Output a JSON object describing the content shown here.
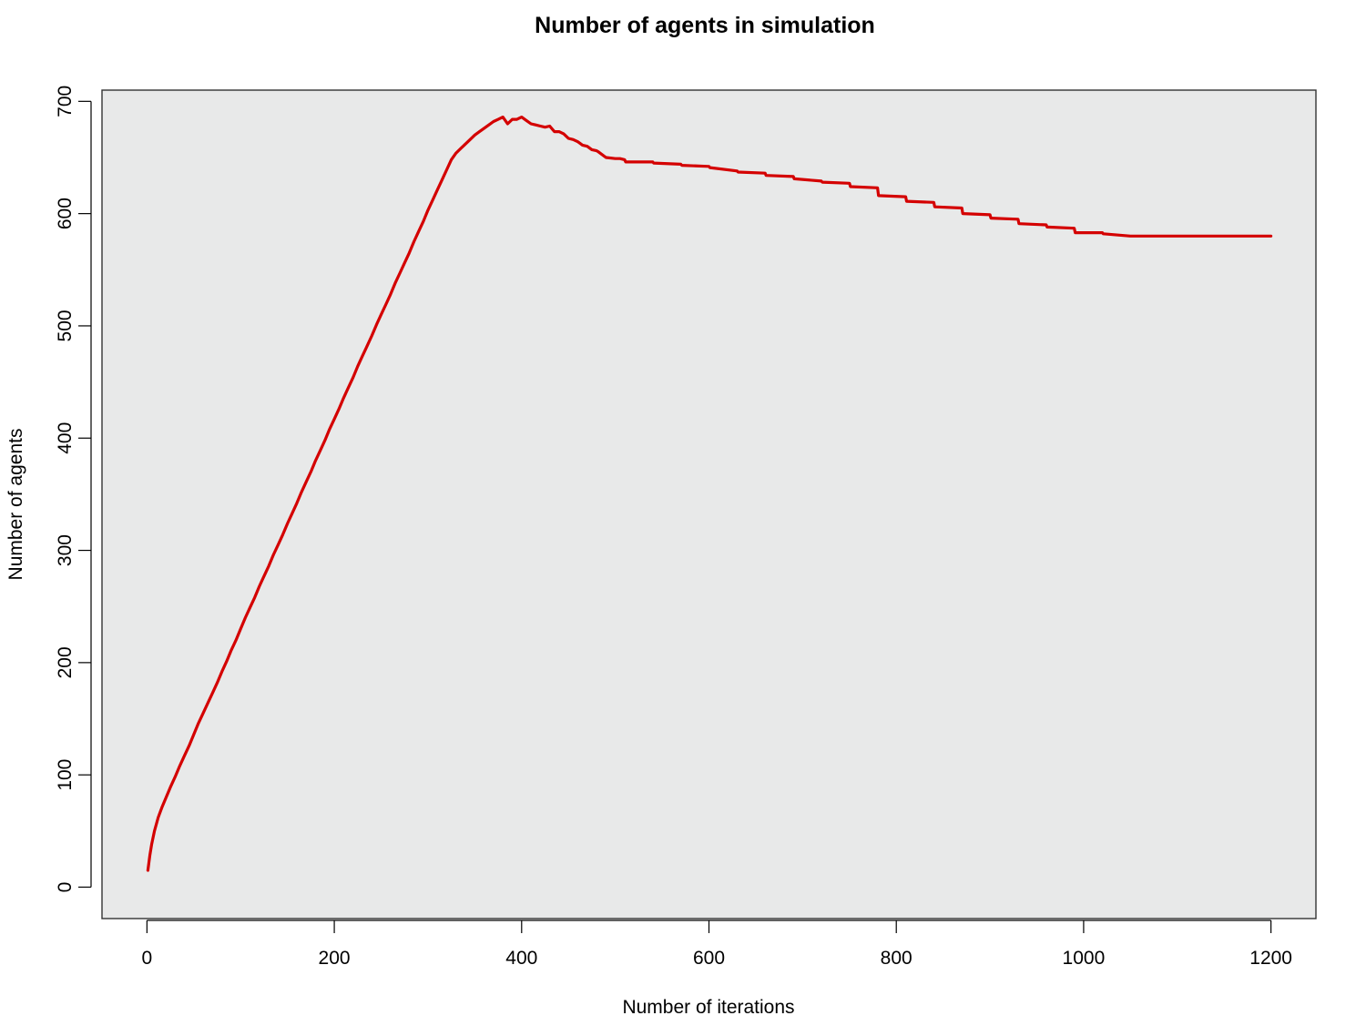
{
  "chart_data": {
    "type": "line",
    "title": "Number of agents in simulation",
    "xlabel": "Number of iterations",
    "ylabel": "Number of agents",
    "xlim": [
      -48,
      1248
    ],
    "ylim": [
      -28,
      710
    ],
    "xticks": [
      0,
      200,
      400,
      600,
      800,
      1000,
      1200
    ],
    "xtick_labels": [
      "0",
      "200",
      "400",
      "600",
      "800",
      "1000",
      "1200"
    ],
    "yticks": [
      0,
      100,
      200,
      300,
      400,
      500,
      600,
      700
    ],
    "ytick_labels": [
      "0",
      "100",
      "200",
      "300",
      "400",
      "500",
      "600",
      "700"
    ],
    "grid": false,
    "background": "#e8e9e9",
    "series": [
      {
        "color": "#d40000",
        "x": [
          1,
          3,
          5,
          8,
          12,
          16,
          20,
          25,
          30,
          35,
          40,
          45,
          50,
          55,
          60,
          65,
          70,
          75,
          80,
          85,
          90,
          95,
          100,
          105,
          110,
          115,
          120,
          125,
          130,
          135,
          140,
          145,
          150,
          155,
          160,
          165,
          170,
          175,
          180,
          185,
          190,
          195,
          200,
          205,
          210,
          215,
          220,
          225,
          230,
          235,
          240,
          245,
          250,
          255,
          260,
          265,
          270,
          275,
          280,
          285,
          290,
          295,
          300,
          305,
          310,
          315,
          320,
          325,
          330,
          335,
          340,
          345,
          350,
          355,
          360,
          365,
          370,
          375,
          380,
          385,
          390,
          395,
          400,
          405,
          410,
          415,
          420,
          425,
          430,
          435,
          440,
          445,
          450,
          455,
          460,
          465,
          470,
          475,
          480,
          482,
          490,
          500,
          505,
          510,
          511,
          540,
          541,
          570,
          571,
          600,
          601,
          630,
          631,
          660,
          661,
          690,
          691,
          720,
          721,
          750,
          751,
          780,
          781,
          810,
          811,
          840,
          841,
          870,
          871,
          900,
          901,
          930,
          931,
          960,
          961,
          990,
          991,
          1020,
          1021,
          1050,
          1051,
          1080,
          1081,
          1110,
          1111,
          1140,
          1141,
          1170,
          1171,
          1180,
          1200
        ],
        "y": [
          15,
          28,
          38,
          50,
          62,
          71,
          79,
          89,
          98,
          108,
          117,
          126,
          136,
          146,
          155,
          164,
          173,
          182,
          192,
          201,
          211,
          220,
          230,
          240,
          249,
          258,
          268,
          277,
          286,
          296,
          305,
          314,
          324,
          333,
          342,
          352,
          361,
          370,
          380,
          389,
          398,
          408,
          417,
          426,
          436,
          445,
          454,
          464,
          473,
          482,
          491,
          501,
          510,
          519,
          528,
          538,
          547,
          556,
          565,
          575,
          584,
          593,
          603,
          612,
          621,
          630,
          639,
          648,
          654,
          658,
          662,
          666,
          670,
          673,
          676,
          679,
          682,
          684,
          686,
          680,
          684,
          684,
          686,
          683,
          680,
          679,
          678,
          677,
          678,
          673,
          673,
          671,
          667,
          666,
          664,
          661,
          660,
          657,
          656,
          655,
          650,
          649,
          649,
          648,
          646,
          646,
          645,
          644,
          643,
          642,
          641,
          638,
          637,
          636,
          634,
          633,
          631,
          629,
          628,
          627,
          624,
          623,
          616,
          615,
          611,
          610,
          606,
          605,
          600,
          599,
          596,
          595,
          591,
          590,
          588,
          587,
          583,
          583,
          582,
          580,
          580,
          580,
          580,
          580,
          580,
          580,
          580,
          580,
          580,
          580,
          580
        ]
      }
    ]
  }
}
